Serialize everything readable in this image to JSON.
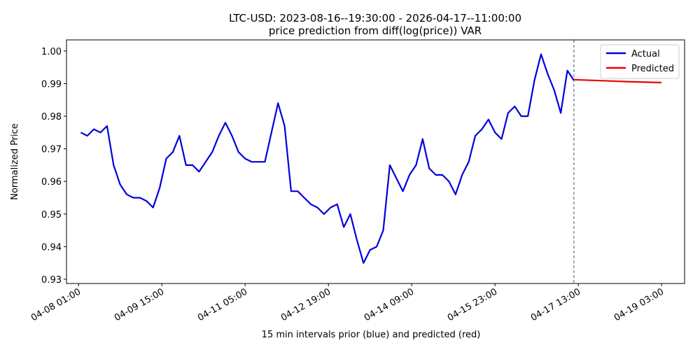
{
  "chart_data": {
    "type": "line",
    "title": "LTC-USD: 2023-08-16--19:30:00 - 2026-04-17--11:00:00",
    "subtitle": "price prediction from diff(log(price)) VAR",
    "x_label": "15 min intervals prior (blue) and predicted (red)",
    "y_label": "Normalized Price",
    "xlim": [
      "04-07 19:30",
      "04-19 13:30"
    ],
    "xticks": [
      "04-08 01:00",
      "04-09 15:00",
      "04-11 05:00",
      "04-12 19:00",
      "04-14 09:00",
      "04-15 23:00",
      "04-17 13:00",
      "04-19 03:00"
    ],
    "ylim": [
      0.9287,
      1.0034
    ],
    "yticks": [
      0.93,
      0.94,
      0.95,
      0.96,
      0.97,
      0.98,
      0.99,
      {
        "value": 1,
        "label": "1.00"
      }
    ],
    "vline": "04-17 11:00",
    "legend": "upper right",
    "series": [
      {
        "name": "Actual",
        "color": "#0000dd",
        "x": [
          "04-08 02:00",
          "04-08 05:00",
          "04-08 08:00",
          "04-08 11:00",
          "04-08 14:00",
          "04-08 17:00",
          "04-08 20:00",
          "04-08 23:00",
          "04-09 02:00",
          "04-09 05:00",
          "04-09 08:00",
          "04-09 11:00",
          "04-09 14:00",
          "04-09 17:00",
          "04-09 20:00",
          "04-09 23:00",
          "04-10 02:00",
          "04-10 05:00",
          "04-10 08:00",
          "04-10 11:00",
          "04-10 14:00",
          "04-10 17:00",
          "04-10 20:00",
          "04-10 23:00",
          "04-11 02:00",
          "04-11 05:00",
          "04-11 08:00",
          "04-11 11:00",
          "04-11 14:00",
          "04-11 17:00",
          "04-11 20:00",
          "04-11 23:00",
          "04-12 02:00",
          "04-12 05:00",
          "04-12 08:00",
          "04-12 11:00",
          "04-12 14:00",
          "04-12 17:00",
          "04-12 20:00",
          "04-12 23:00",
          "04-13 02:00",
          "04-13 05:00",
          "04-13 08:00",
          "04-13 11:00",
          "04-13 14:00",
          "04-13 17:00",
          "04-13 20:00",
          "04-13 23:00",
          "04-14 02:00",
          "04-14 05:00",
          "04-14 08:00",
          "04-14 11:00",
          "04-14 14:00",
          "04-14 17:00",
          "04-14 20:00",
          "04-14 23:00",
          "04-15 02:00",
          "04-15 05:00",
          "04-15 08:00",
          "04-15 11:00",
          "04-15 14:00",
          "04-15 17:00",
          "04-15 20:00",
          "04-15 23:00",
          "04-16 02:00",
          "04-16 05:00",
          "04-16 08:00",
          "04-16 11:00",
          "04-16 14:00",
          "04-16 17:00",
          "04-16 20:00",
          "04-16 23:00",
          "04-17 02:00",
          "04-17 05:00",
          "04-17 08:00",
          "04-17 11:00"
        ],
        "values": [
          0.975,
          0.974,
          0.976,
          0.975,
          0.977,
          0.965,
          0.959,
          0.956,
          0.955,
          0.955,
          0.954,
          0.952,
          0.958,
          0.967,
          0.969,
          0.974,
          0.965,
          0.965,
          0.963,
          0.966,
          0.969,
          0.974,
          0.978,
          0.974,
          0.969,
          0.967,
          0.966,
          0.966,
          0.966,
          0.975,
          0.984,
          0.977,
          0.957,
          0.957,
          0.955,
          0.953,
          0.952,
          0.95,
          0.952,
          0.953,
          0.946,
          0.95,
          0.942,
          0.935,
          0.939,
          0.94,
          0.945,
          0.965,
          0.961,
          0.957,
          0.962,
          0.965,
          0.973,
          0.964,
          0.962,
          0.962,
          0.96,
          0.956,
          0.962,
          0.966,
          0.974,
          0.976,
          0.979,
          0.975,
          0.973,
          0.981,
          0.983,
          0.98,
          0.98,
          0.991,
          0.999,
          0.993,
          0.988,
          0.981,
          0.994,
          0.991
        ]
      },
      {
        "name": "Predicted",
        "color": "#ee0000",
        "x": [
          "04-17 11:00",
          "04-17 23:00",
          "04-18 11:00",
          "04-18 23:00",
          "04-19 03:00"
        ],
        "values": [
          0.9912,
          0.9909,
          0.9906,
          0.9904,
          0.9903
        ]
      }
    ]
  }
}
